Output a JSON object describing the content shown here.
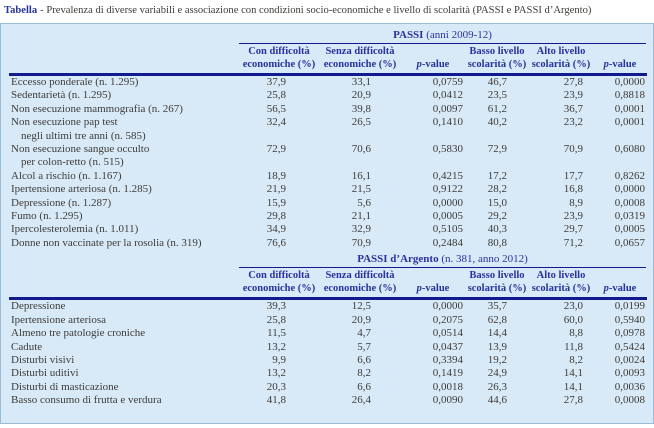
{
  "colors": {
    "header_blue": "#2733a0",
    "rule_navy": "#111b8f",
    "panel_bg": "#d8e9f7",
    "panel_border": "#99bcd9",
    "text": "#3f3c38"
  },
  "title": {
    "label": "Tabella",
    "rest": "- Prevalenza di diverse variabili e associazione con condizioni socio-economiche e livello di scolarità (PASSI e PASSI d’Argento)"
  },
  "columns": {
    "c1": [
      "Con difficoltà",
      "economiche (%)"
    ],
    "c2": [
      "Senza difficoltà",
      "economiche (%)"
    ],
    "c3": [
      "p-value"
    ],
    "c4": [
      "Basso livello",
      "scolarità (%)"
    ],
    "c5": [
      "Alto livello",
      "scolarità (%)"
    ],
    "c6": [
      "p-value"
    ]
  },
  "sections": [
    {
      "header": {
        "name": "PASSI",
        "detail": " (anni 2009-12)"
      },
      "rows": [
        {
          "label": "Eccesso ponderale (n. 1.295)",
          "label2": "",
          "values": [
            "37,9",
            "33,1",
            "0,0759",
            "46,7",
            "27,8",
            "0,0000"
          ]
        },
        {
          "label": "Sedentarietà (n. 1.295)",
          "label2": "",
          "values": [
            "25,8",
            "20,9",
            "0,0412",
            "23,5",
            "23,9",
            "0,8818"
          ]
        },
        {
          "label": "Non esecuzione mammografia (n. 267)",
          "label2": "",
          "values": [
            "56,5",
            "39,8",
            "0,0097",
            "61,2",
            "36,7",
            "0,0001"
          ]
        },
        {
          "label": "Non esecuzione pap test",
          "label2": "negli ultimi tre anni (n. 585)",
          "values": [
            "32,4",
            "26,5",
            "0,1410",
            "40,2",
            "23,2",
            "0,0001"
          ]
        },
        {
          "label": "Non esecuzione sangue occulto",
          "label2": "per colon-retto (n. 515)",
          "values": [
            "72,9",
            "70,6",
            "0,5830",
            "72,9",
            "70,9",
            "0,6080"
          ]
        },
        {
          "label": "Alcol a rischio (n. 1.167)",
          "label2": "",
          "values": [
            "18,9",
            "16,1",
            "0,4215",
            "17,2",
            "17,7",
            "0,8262"
          ]
        },
        {
          "label": "Ipertensione arteriosa (n. 1.285)",
          "label2": "",
          "values": [
            "21,9",
            "21,5",
            "0,9122",
            "28,2",
            "16,8",
            "0,0000"
          ]
        },
        {
          "label": "Depressione (n. 1.287)",
          "label2": "",
          "values": [
            "15,9",
            "5,6",
            "0,0000",
            "15,0",
            "8,9",
            "0,0008"
          ]
        },
        {
          "label": "Fumo (n. 1.295)",
          "label2": "",
          "values": [
            "29,8",
            "21,1",
            "0,0005",
            "29,2",
            "23,9",
            "0,0319"
          ]
        },
        {
          "label": "Ipercolesterolemia (n. 1.011)",
          "label2": "",
          "values": [
            "34,9",
            "32,9",
            "0,5105",
            "40,3",
            "29,7",
            "0,0005"
          ]
        },
        {
          "label": "Donne non vaccinate per la rosolia (n. 319)",
          "label2": "",
          "values": [
            "76,6",
            "70,9",
            "0,2484",
            "80,8",
            "71,2",
            "0,0657"
          ]
        }
      ]
    },
    {
      "header": {
        "name": "PASSI d’Argento",
        "detail": " (n. 381, anno 2012)"
      },
      "rows": [
        {
          "label": "Depressione",
          "label2": "",
          "values": [
            "39,3",
            "12,5",
            "0,0000",
            "35,7",
            "23,0",
            "0,0199"
          ]
        },
        {
          "label": "Ipertensione arteriosa",
          "label2": "",
          "values": [
            "25,8",
            "20,9",
            "0,2075",
            "62,8",
            "60,0",
            "0,5940"
          ]
        },
        {
          "label": "Almeno tre patologie croniche",
          "label2": "",
          "values": [
            "11,5",
            "4,7",
            "0,0514",
            "14,4",
            "8,8",
            "0,0978"
          ]
        },
        {
          "label": "Cadute",
          "label2": "",
          "values": [
            "13,2",
            "5,7",
            "0,0437",
            "13,9",
            "11,8",
            "0,5424"
          ]
        },
        {
          "label": "Disturbi visivi",
          "label2": "",
          "values": [
            "9,9",
            "6,6",
            "0,3394",
            "19,2",
            "8,2",
            "0,0024"
          ]
        },
        {
          "label": "Disturbi uditivi",
          "label2": "",
          "values": [
            "13,2",
            "8,2",
            "0,1419",
            "24,9",
            "14,1",
            "0,0093"
          ]
        },
        {
          "label": "Disturbi di masticazione",
          "label2": "",
          "values": [
            "20,3",
            "6,6",
            "0,0018",
            "26,3",
            "14,1",
            "0,0036"
          ]
        },
        {
          "label": "Basso consumo di frutta e verdura",
          "label2": "",
          "values": [
            "41,8",
            "26,4",
            "0,0090",
            "44,6",
            "27,8",
            "0,0008"
          ]
        }
      ]
    }
  ]
}
